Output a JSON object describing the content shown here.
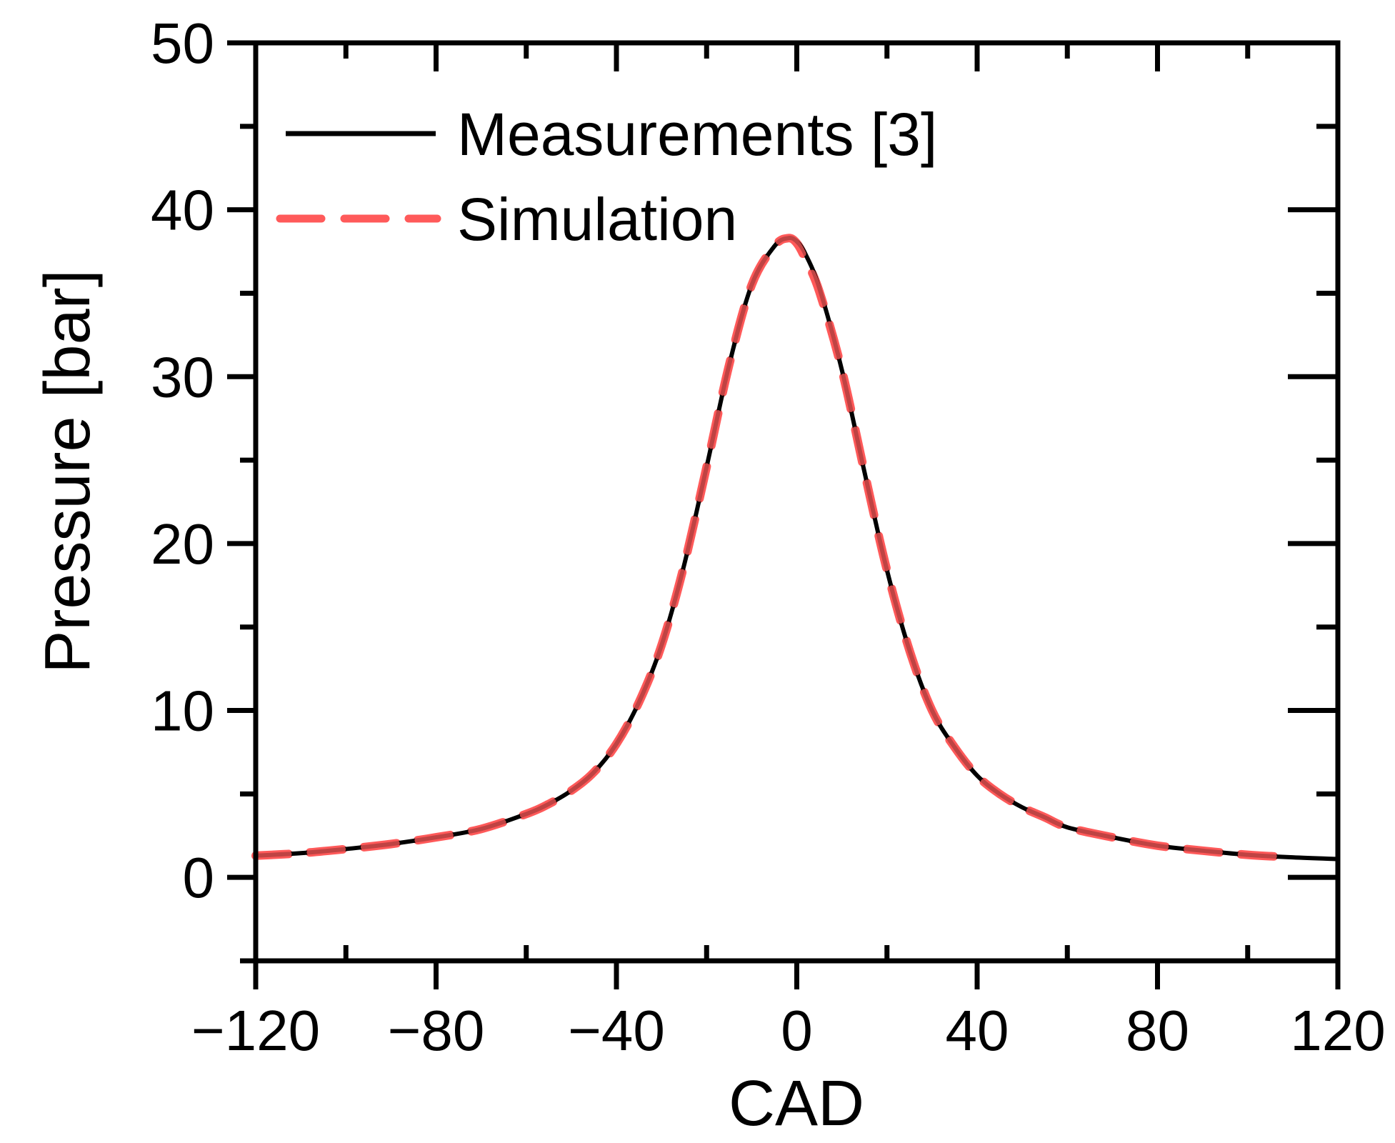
{
  "chart_data": {
    "type": "line",
    "title": "",
    "xlabel": "CAD",
    "ylabel": "Pressure [bar]",
    "xlim": [
      -120,
      120
    ],
    "ylim": [
      -5,
      50
    ],
    "xticks": [
      -120,
      -80,
      -40,
      0,
      40,
      80,
      120
    ],
    "xtick_labels": [
      "−120",
      "−80",
      "−40",
      "0",
      "40",
      "80",
      "120"
    ],
    "yticks": [
      0,
      10,
      20,
      30,
      40,
      50
    ],
    "ytick_labels": [
      "0",
      "10",
      "20",
      "30",
      "40",
      "50"
    ],
    "minor_xtick_step": 20,
    "minor_ytick_step": 5,
    "grid": false,
    "legend_position": "top-left",
    "colors": {
      "measurements": "#000000",
      "simulation": "#ff5a5a",
      "axis": "#000000"
    },
    "series": [
      {
        "name": "Measurements [3]",
        "style": "solid",
        "x": [
          -120,
          -110,
          -100,
          -90,
          -80,
          -70,
          -60,
          -55,
          -50,
          -45,
          -40,
          -35,
          -30,
          -25,
          -20,
          -15,
          -10,
          -5,
          -2,
          0,
          2,
          5,
          10,
          15,
          20,
          25,
          30,
          35,
          40,
          45,
          50,
          55,
          60,
          70,
          80,
          90,
          100,
          110,
          120
        ],
        "y": [
          1.3,
          1.45,
          1.7,
          2.0,
          2.4,
          2.9,
          3.8,
          4.4,
          5.2,
          6.3,
          8.0,
          10.5,
          13.9,
          18.7,
          24.6,
          30.7,
          35.5,
          37.8,
          38.3,
          38.1,
          37.3,
          35.3,
          30.4,
          24.3,
          18.4,
          13.6,
          10.0,
          7.8,
          6.1,
          5.0,
          4.2,
          3.6,
          3.0,
          2.4,
          1.9,
          1.6,
          1.35,
          1.2,
          1.1
        ]
      },
      {
        "name": "Simulation",
        "style": "dashed",
        "x": [
          -120,
          -110,
          -100,
          -90,
          -80,
          -70,
          -60,
          -55,
          -50,
          -45,
          -40,
          -35,
          -30,
          -25,
          -20,
          -15,
          -10,
          -5,
          -2,
          0,
          2,
          5,
          10,
          15,
          20,
          25,
          30,
          35,
          40,
          45,
          50,
          55,
          60,
          70,
          80,
          90,
          100,
          110
        ],
        "y": [
          1.3,
          1.45,
          1.7,
          2.0,
          2.4,
          2.9,
          3.8,
          4.4,
          5.2,
          6.3,
          8.0,
          10.5,
          13.9,
          18.7,
          24.6,
          30.7,
          35.5,
          37.8,
          38.3,
          38.0,
          37.0,
          35.1,
          30.4,
          24.3,
          18.4,
          13.6,
          10.0,
          7.8,
          6.1,
          5.0,
          4.2,
          3.6,
          3.0,
          2.4,
          1.9,
          1.6,
          1.35,
          1.2
        ]
      }
    ]
  }
}
